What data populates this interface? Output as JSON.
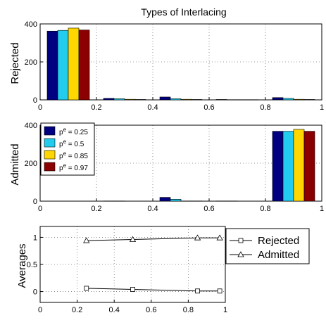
{
  "chart_data": [
    {
      "type": "bar",
      "title": "Types of Interlacing",
      "xlabel": "",
      "ylabel": "Rejected",
      "xlim": [
        0,
        1
      ],
      "ylim": [
        0,
        400
      ],
      "xticks": [
        "0",
        "0.2",
        "0.4",
        "0.6",
        "0.8",
        "1"
      ],
      "yticks": [
        "0",
        "200",
        "400"
      ],
      "grid": true,
      "categories": [
        "0.1",
        "0.3",
        "0.5",
        "0.7",
        "0.9"
      ],
      "series": [
        {
          "name": "p^e = 0.25",
          "color": "#000080",
          "values": [
            362,
            8,
            15,
            2,
            12
          ]
        },
        {
          "name": "p^e = 0.5",
          "color": "#22ccee",
          "values": [
            366,
            6,
            6,
            1,
            8
          ]
        },
        {
          "name": "p^e = 0.85",
          "color": "#ffd700",
          "values": [
            378,
            3,
            3,
            1,
            3
          ]
        },
        {
          "name": "p^e = 0.97",
          "color": "#8b0000",
          "values": [
            368,
            2,
            2,
            1,
            2
          ]
        }
      ]
    },
    {
      "type": "bar",
      "title": "",
      "xlabel": "",
      "ylabel": "Admitted",
      "xlim": [
        0,
        1
      ],
      "ylim": [
        0,
        400
      ],
      "xticks": [
        "0",
        "0.2",
        "0.4",
        "0.6",
        "0.8",
        "1"
      ],
      "yticks": [
        "0",
        "200",
        "400"
      ],
      "grid": true,
      "legend_position": "top-left",
      "categories": [
        "0.1",
        "0.3",
        "0.5",
        "0.7",
        "0.9"
      ],
      "series": [
        {
          "name": "p^e = 0.25",
          "color": "#000080",
          "values": [
            0,
            1,
            20,
            1,
            368
          ]
        },
        {
          "name": "p^e = 0.5",
          "color": "#22ccee",
          "values": [
            0,
            1,
            10,
            1,
            368
          ]
        },
        {
          "name": "p^e = 0.85",
          "color": "#ffd700",
          "values": [
            0,
            0,
            1,
            0,
            378
          ]
        },
        {
          "name": "p^e = 0.97",
          "color": "#8b0000",
          "values": [
            0,
            0,
            1,
            0,
            368
          ]
        }
      ]
    },
    {
      "type": "line",
      "title": "",
      "xlabel": "",
      "ylabel": "Averages",
      "xlim": [
        0,
        1
      ],
      "ylim": [
        -0.2,
        1.2
      ],
      "xticks": [
        "0",
        "0.2",
        "0.4",
        "0.6",
        "0.8",
        "1"
      ],
      "yticks": [
        "0",
        "0.5",
        "1"
      ],
      "grid": true,
      "legend_position": "outside-right",
      "x": [
        0.25,
        0.5,
        0.85,
        0.97
      ],
      "series": [
        {
          "name": "Rejected",
          "marker": "square",
          "values": [
            0.06,
            0.04,
            0.01,
            0.01
          ]
        },
        {
          "name": "Admitted",
          "marker": "triangle",
          "values": [
            0.94,
            0.96,
            0.99,
            0.99
          ]
        }
      ]
    }
  ]
}
